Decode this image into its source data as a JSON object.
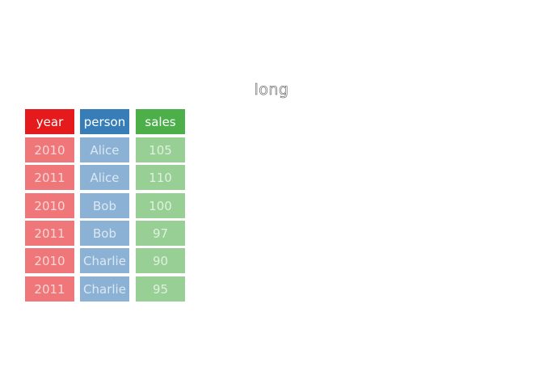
{
  "title": "long",
  "columns": [
    {
      "name": "year",
      "color": "#e41a1c",
      "light_color": "#f07779"
    },
    {
      "name": "person",
      "color": "#377eb8",
      "light_color": "#8bb1d5"
    },
    {
      "name": "sales",
      "color": "#4daf4a",
      "light_color": "#97cf94"
    }
  ],
  "rows": [
    [
      "2010",
      "Alice",
      "105"
    ],
    [
      "2011",
      "Alice",
      "110"
    ],
    [
      "2010",
      "Bob",
      "100"
    ],
    [
      "2011",
      "Bob",
      "97"
    ],
    [
      "2010",
      "Charlie",
      "90"
    ],
    [
      "2011",
      "Charlie",
      "95"
    ]
  ]
}
